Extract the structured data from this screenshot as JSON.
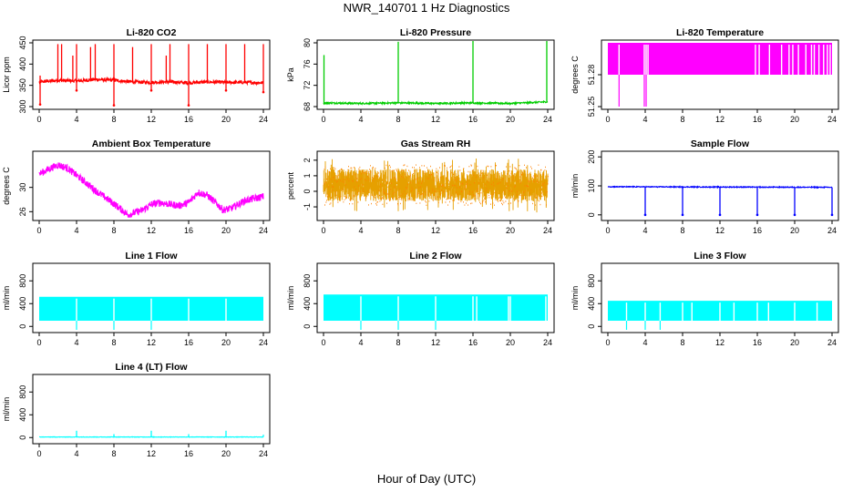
{
  "figure": {
    "title": "NWR_140701  1 Hz Diagnostics",
    "xlabel": "Hour of Day (UTC)"
  },
  "chart_data": [
    {
      "type": "line",
      "title": "Li-820 CO2",
      "ylabel": "Licor ppm",
      "color": "#ff0000",
      "xlim": [
        0,
        24
      ],
      "xticks": [
        "0",
        "4",
        "8",
        "12",
        "16",
        "20",
        "24"
      ],
      "ylim": [
        300,
        450
      ],
      "yticks": [
        "300",
        "350",
        "400",
        "450"
      ],
      "baseline": [
        [
          0,
          358
        ],
        [
          2,
          362
        ],
        [
          4,
          360
        ],
        [
          6,
          364
        ],
        [
          8,
          362
        ],
        [
          10,
          358
        ],
        [
          12,
          357
        ],
        [
          14,
          358
        ],
        [
          16,
          356
        ],
        [
          18,
          358
        ],
        [
          20,
          357
        ],
        [
          22,
          357
        ],
        [
          24,
          356
        ]
      ],
      "noise": 4,
      "spikes_up": [
        [
          0.1,
          373
        ],
        [
          2,
          447
        ],
        [
          2.4,
          447
        ],
        [
          3.6,
          420
        ],
        [
          4,
          447
        ],
        [
          5.5,
          440
        ],
        [
          6,
          447
        ],
        [
          8,
          447
        ],
        [
          10,
          440
        ],
        [
          12,
          447
        ],
        [
          13.6,
          420
        ],
        [
          14,
          447
        ],
        [
          16,
          447
        ],
        [
          18,
          447
        ],
        [
          20,
          447
        ],
        [
          22,
          447
        ],
        [
          24,
          447
        ]
      ],
      "spikes_down": [
        [
          0.1,
          305
        ],
        [
          4,
          338
        ],
        [
          8,
          303
        ],
        [
          12,
          338
        ],
        [
          16,
          303
        ],
        [
          20,
          338
        ],
        [
          24,
          334
        ]
      ]
    },
    {
      "type": "line",
      "title": "Li-820 Pressure",
      "ylabel": "kPa",
      "color": "#00cc00",
      "xlim": [
        0,
        24
      ],
      "xticks": [
        "0",
        "4",
        "8",
        "12",
        "16",
        "20",
        "24"
      ],
      "ylim": [
        68,
        80
      ],
      "yticks": [
        "68",
        "72",
        "76",
        "80"
      ],
      "baseline": [
        [
          0,
          68.7
        ],
        [
          4,
          68.6
        ],
        [
          8,
          68.7
        ],
        [
          12,
          68.6
        ],
        [
          16,
          68.7
        ],
        [
          20,
          68.6
        ],
        [
          24,
          68.9
        ]
      ],
      "noise": 0.15,
      "spikes_up": [
        [
          0.05,
          77.7
        ],
        [
          8,
          80.2
        ],
        [
          16,
          80.6
        ],
        [
          23.9,
          80.5
        ]
      ],
      "spikes_down": []
    },
    {
      "type": "band",
      "title": "Li-820 Temperature",
      "ylabel": "degrees C",
      "color": "#ff00ff",
      "xlim": [
        0,
        24
      ],
      "xticks": [
        "0",
        "4",
        "8",
        "12",
        "16",
        "20",
        "24"
      ],
      "ylim": [
        51.25,
        51.31
      ],
      "yticks": [
        "51.25",
        "51.28"
      ],
      "band_low": 51.28,
      "band_high": 51.31,
      "drops": [
        1.2,
        3.9,
        4.1,
        4.3,
        15.8,
        16.2,
        17.3,
        18.6,
        19.4,
        19.8,
        20.4,
        21.2,
        21.8,
        22.1,
        22.6,
        23.1,
        23.5,
        23.8
      ]
    },
    {
      "type": "line",
      "title": "Ambient Box Temperature",
      "ylabel": "degrees C",
      "color": "#ff00ff",
      "xlim": [
        0,
        24
      ],
      "xticks": [
        "0",
        "4",
        "8",
        "12",
        "16",
        "20",
        "24"
      ],
      "ylim": [
        25,
        35.5
      ],
      "yticks": [
        "26",
        "30"
      ],
      "baseline": [
        [
          0,
          32.2
        ],
        [
          1,
          33
        ],
        [
          2,
          33.7
        ],
        [
          3,
          33.2
        ],
        [
          4,
          32
        ],
        [
          6,
          29.5
        ],
        [
          8,
          27.3
        ],
        [
          9.5,
          25.5
        ],
        [
          11,
          26.2
        ],
        [
          12,
          27.2
        ],
        [
          13,
          27.5
        ],
        [
          14,
          27.2
        ],
        [
          15,
          27
        ],
        [
          16,
          27.5
        ],
        [
          17,
          29.2
        ],
        [
          18,
          28.7
        ],
        [
          19,
          27.3
        ],
        [
          19.7,
          26.3
        ],
        [
          20.5,
          26.5
        ],
        [
          22,
          27.8
        ],
        [
          24,
          28.5
        ]
      ],
      "noise": 0.6,
      "spikes_up": [],
      "spikes_down": []
    },
    {
      "type": "noise-band",
      "title": "Gas Stream RH",
      "ylabel": "percent",
      "color": "#e6a000",
      "color2": "#ff8000",
      "xlim": [
        0,
        24
      ],
      "xticks": [
        "0",
        "4",
        "8",
        "12",
        "16",
        "20",
        "24"
      ],
      "ylim": [
        -1.7,
        2.4
      ],
      "yticks": [
        "-1",
        "0",
        "1",
        "2"
      ],
      "center": 0.4,
      "spread": 1.3,
      "extreme": 2.2
    },
    {
      "type": "line",
      "title": "Sample Flow",
      "ylabel": "ml/min",
      "color": "#0000ff",
      "xlim": [
        0,
        24
      ],
      "xticks": [
        "0",
        "4",
        "8",
        "12",
        "16",
        "20",
        "24"
      ],
      "ylim": [
        -10,
        210
      ],
      "yticks": [
        "0",
        "100",
        "200"
      ],
      "baseline": [
        [
          0,
          97
        ],
        [
          24,
          95
        ]
      ],
      "noise": 1.5,
      "spikes_up": [],
      "spikes_down": [
        [
          4,
          0
        ],
        [
          8,
          0
        ],
        [
          12,
          0
        ],
        [
          16,
          0
        ],
        [
          20,
          0
        ],
        [
          24,
          0
        ]
      ]
    },
    {
      "type": "band",
      "title": "Line 1 Flow",
      "ylabel": "ml/min",
      "color": "#00ffff",
      "xlim": [
        0,
        24
      ],
      "xticks": [
        "0",
        "4",
        "8",
        "12",
        "16",
        "20",
        "24"
      ],
      "ylim": [
        -60,
        1060
      ],
      "yticks": [
        "0",
        "400",
        "800"
      ],
      "band_low": 100,
      "band_high": 520,
      "drops": [
        4,
        8,
        12,
        16,
        20
      ]
    },
    {
      "type": "band",
      "title": "Line 2 Flow",
      "ylabel": "ml/min",
      "color": "#00ffff",
      "xlim": [
        0,
        24
      ],
      "xticks": [
        "0",
        "4",
        "8",
        "12",
        "16",
        "20",
        "24"
      ],
      "ylim": [
        -60,
        1060
      ],
      "yticks": [
        "0",
        "400",
        "800"
      ],
      "band_low": 100,
      "band_high": 560,
      "drops": [
        4,
        8,
        12,
        16,
        16.4,
        19.8,
        20,
        23.8
      ]
    },
    {
      "type": "band",
      "title": "Line 3 Flow",
      "ylabel": "ml/min",
      "color": "#00ffff",
      "xlim": [
        0,
        24
      ],
      "xticks": [
        "0",
        "4",
        "8",
        "12",
        "16",
        "20",
        "24"
      ],
      "ylim": [
        -60,
        1060
      ],
      "yticks": [
        "0",
        "400",
        "800"
      ],
      "band_low": 100,
      "band_high": 450,
      "drops": [
        2,
        4,
        5.6,
        8,
        9,
        12,
        13.5,
        16,
        17.2,
        20,
        22.4
      ]
    },
    {
      "type": "line",
      "title": "Line 4 (LT) Flow",
      "ylabel": "ml/min",
      "color": "#00ffff",
      "xlim": [
        0,
        24
      ],
      "xticks": [
        "0",
        "4",
        "8",
        "12",
        "16",
        "20",
        "24"
      ],
      "ylim": [
        -60,
        1060
      ],
      "yticks": [
        "0",
        "400",
        "800"
      ],
      "baseline": [
        [
          0,
          10
        ],
        [
          24,
          10
        ]
      ],
      "noise": 4,
      "spikes_up": [
        [
          4,
          120
        ],
        [
          8,
          60
        ],
        [
          12,
          120
        ],
        [
          16,
          60
        ],
        [
          20,
          120
        ],
        [
          24,
          50
        ]
      ],
      "spikes_down": []
    }
  ]
}
